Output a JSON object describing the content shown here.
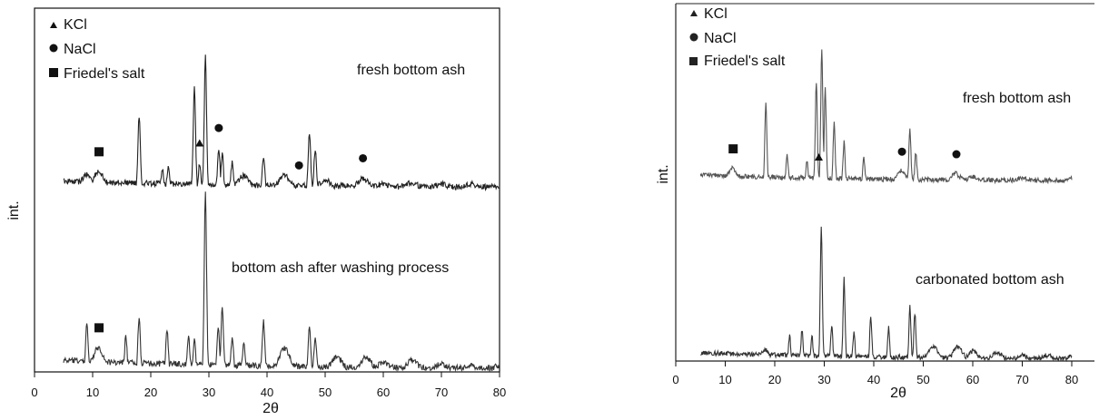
{
  "chart_data": [
    {
      "type": "line",
      "xlabel": "2θ",
      "ylabel": "int.",
      "xlim": [
        0,
        80
      ],
      "xticks": [
        0,
        10,
        20,
        30,
        40,
        50,
        60,
        70,
        80
      ],
      "xtick_labels": [
        "0",
        "10",
        "20",
        "30",
        "40",
        "50",
        "60",
        "70",
        "80"
      ],
      "legend": [
        {
          "symbol": "triangle",
          "label": "KCl"
        },
        {
          "symbol": "circle",
          "label": "NaCl"
        },
        {
          "symbol": "square",
          "label": "Friedel's salt"
        }
      ],
      "series": [
        {
          "label": "fresh bottom ash",
          "x": [
            5,
            9,
            11,
            18,
            22,
            23,
            27.5,
            28.4,
            29.4,
            31.7,
            32.3,
            34,
            36,
            39.4,
            43,
            47.3,
            48.3,
            50,
            56.5,
            60,
            65,
            70,
            75,
            80
          ],
          "y": [
            0.02,
            0.1,
            0.12,
            0.55,
            0.15,
            0.16,
            0.75,
            0.18,
            1.0,
            0.3,
            0.25,
            0.2,
            0.09,
            0.24,
            0.1,
            0.42,
            0.3,
            0.06,
            0.07,
            0.03,
            0.04,
            0.03,
            0.03,
            0.02
          ],
          "markers": [
            {
              "symbol": "square",
              "x": 11.1
            },
            {
              "symbol": "triangle",
              "x": 28.4
            },
            {
              "symbol": "circle",
              "x": 31.7
            },
            {
              "symbol": "circle",
              "x": 45.5
            },
            {
              "symbol": "circle",
              "x": 56.5
            }
          ]
        },
        {
          "label": "bottom ash after washing process",
          "x": [
            5,
            9,
            11,
            15.7,
            18,
            22.8,
            26.5,
            27.5,
            29.4,
            31.6,
            32.3,
            34,
            36,
            39.4,
            43,
            47.3,
            48.3,
            52,
            57,
            60,
            65,
            70,
            75,
            80
          ],
          "y": [
            0.02,
            0.27,
            0.12,
            0.18,
            0.3,
            0.23,
            0.18,
            0.16,
            1.0,
            0.25,
            0.35,
            0.18,
            0.15,
            0.27,
            0.12,
            0.24,
            0.17,
            0.07,
            0.07,
            0.04,
            0.05,
            0.03,
            0.02,
            0.02
          ],
          "markers": [
            {
              "symbol": "square",
              "x": 11.1
            }
          ]
        }
      ]
    },
    {
      "type": "line",
      "xlabel": "2θ",
      "ylabel": "int.",
      "xlim": [
        0,
        80
      ],
      "xticks": [
        0,
        10,
        20,
        30,
        40,
        50,
        60,
        70,
        80
      ],
      "xtick_labels": [
        "0",
        "10",
        "20",
        "30",
        "40",
        "50",
        "60",
        "70",
        "80"
      ],
      "legend": [
        {
          "symbol": "triangle",
          "label": "KCl"
        },
        {
          "symbol": "circle",
          "label": "NaCl"
        },
        {
          "symbol": "square",
          "label": "Friedel's salt"
        }
      ],
      "series": [
        {
          "label": "fresh bottom ash",
          "x": [
            5,
            11.5,
            18.2,
            22.5,
            26.5,
            28.4,
            29.5,
            30.2,
            32,
            34,
            38,
            45.5,
            47.3,
            48.5,
            56.5,
            60,
            70,
            80
          ],
          "y": [
            0.05,
            0.1,
            0.6,
            0.2,
            0.15,
            0.75,
            1.0,
            0.7,
            0.45,
            0.3,
            0.18,
            0.08,
            0.4,
            0.22,
            0.06,
            0.04,
            0.03,
            0.02
          ],
          "markers": [
            {
              "symbol": "square",
              "x": 11.6
            },
            {
              "symbol": "triangle",
              "x": 28.9
            },
            {
              "symbol": "circle",
              "x": 45.7
            },
            {
              "symbol": "circle",
              "x": 56.7
            }
          ]
        },
        {
          "label": "carbonated bottom ash",
          "x": [
            5,
            18,
            23,
            25.5,
            27.5,
            29.4,
            31.5,
            34,
            36,
            39.4,
            43,
            47.3,
            48.3,
            52,
            57,
            60,
            65,
            70,
            75,
            80
          ],
          "y": [
            0.05,
            0.07,
            0.18,
            0.22,
            0.18,
            1.0,
            0.25,
            0.62,
            0.2,
            0.32,
            0.24,
            0.4,
            0.35,
            0.1,
            0.1,
            0.06,
            0.05,
            0.03,
            0.03,
            0.02
          ],
          "markers": []
        }
      ]
    }
  ]
}
